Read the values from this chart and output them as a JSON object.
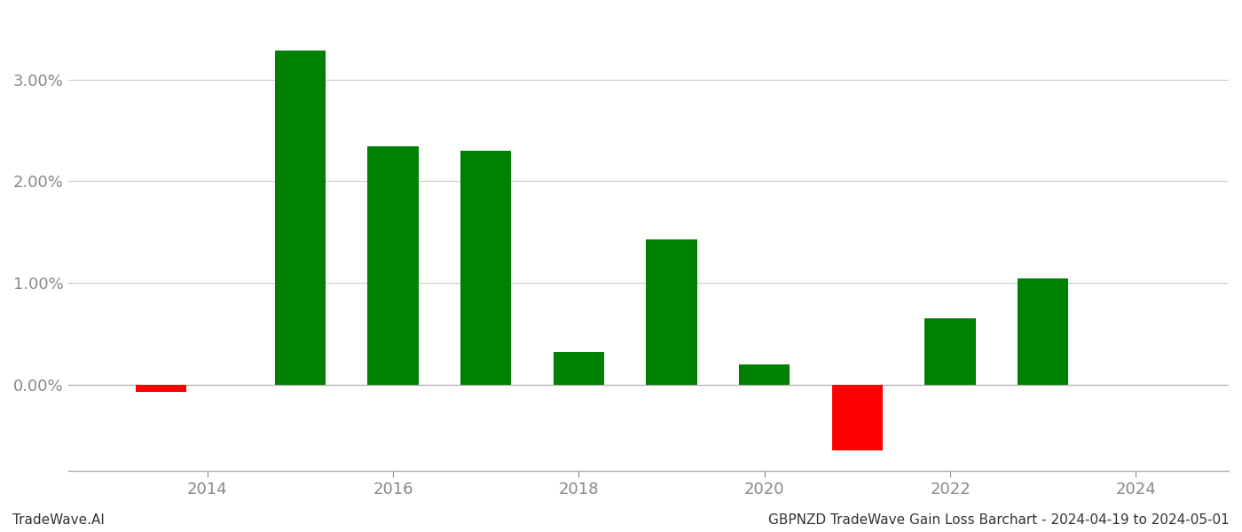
{
  "years": [
    2013.5,
    2015.0,
    2016.0,
    2017.0,
    2018.0,
    2019.0,
    2020.0,
    2021.0,
    2022.0,
    2023.0
  ],
  "values": [
    -0.07,
    3.28,
    2.34,
    2.3,
    0.32,
    1.43,
    0.2,
    -0.65,
    0.65,
    1.04
  ],
  "colors": [
    "#ff0000",
    "#008000",
    "#008000",
    "#008000",
    "#008000",
    "#008000",
    "#008000",
    "#ff0000",
    "#008000",
    "#008000"
  ],
  "bar_width": 0.55,
  "xtick_labels": [
    "2014",
    "2016",
    "2018",
    "2020",
    "2022",
    "2024"
  ],
  "xtick_positions": [
    2014,
    2016,
    2018,
    2020,
    2022,
    2024
  ],
  "ytick_vals": [
    0.0,
    1.0,
    2.0,
    3.0
  ],
  "ylim": [
    -0.85,
    3.65
  ],
  "xlim": [
    2012.5,
    2025.0
  ],
  "grid_color": "#cccccc",
  "background_color": "#ffffff",
  "footer_left": "TradeWave.AI",
  "footer_right": "GBPNZD TradeWave Gain Loss Barchart - 2024-04-19 to 2024-05-01",
  "footer_fontsize": 11,
  "spine_color": "#aaaaaa",
  "tick_label_color": "#888888"
}
